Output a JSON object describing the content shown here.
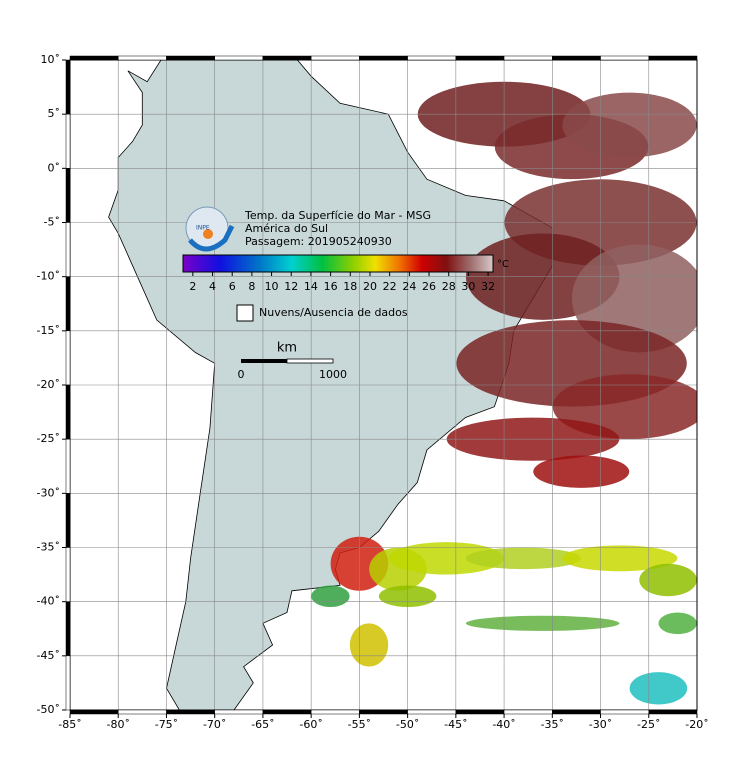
{
  "map": {
    "xlim": [
      -85,
      -20
    ],
    "ylim": [
      -50,
      10
    ],
    "xticks": [
      {
        "value": -85,
        "label": "-85˚"
      },
      {
        "value": -80,
        "label": "-80˚"
      },
      {
        "value": -75,
        "label": "-75˚"
      },
      {
        "value": -70,
        "label": "-70˚"
      },
      {
        "value": -65,
        "label": "-65˚"
      },
      {
        "value": -60,
        "label": "-60˚"
      },
      {
        "value": -55,
        "label": "-55˚"
      },
      {
        "value": -50,
        "label": "-50˚"
      },
      {
        "value": -45,
        "label": "-45˚"
      },
      {
        "value": -40,
        "label": "-40˚"
      },
      {
        "value": -35,
        "label": "-35˚"
      },
      {
        "value": -30,
        "label": "-30˚"
      },
      {
        "value": -25,
        "label": "-25˚"
      },
      {
        "value": -20,
        "label": "-20˚"
      }
    ],
    "yticks": [
      {
        "value": 10,
        "label": "10˚"
      },
      {
        "value": 5,
        "label": "5˚"
      },
      {
        "value": 0,
        "label": "0˚"
      },
      {
        "value": -5,
        "label": "-5˚"
      },
      {
        "value": -10,
        "label": "-10˚"
      },
      {
        "value": -15,
        "label": "-15˚"
      },
      {
        "value": -20,
        "label": "-20˚"
      },
      {
        "value": -25,
        "label": "-25˚"
      },
      {
        "value": -30,
        "label": "-30˚"
      },
      {
        "value": -35,
        "label": "-35˚"
      },
      {
        "value": -40,
        "label": "-40˚"
      },
      {
        "value": -45,
        "label": "-45˚"
      },
      {
        "value": -50,
        "label": "-50˚"
      }
    ],
    "grid": true
  },
  "header": {
    "logo": "INPE",
    "title": "Temp. da Superfície do Mar - MSG",
    "region": "América do Sul",
    "pass": "Passagem: 201905240930"
  },
  "colorbar": {
    "range": [
      1,
      32.5
    ],
    "ticks": [
      2,
      4,
      6,
      8,
      10,
      12,
      14,
      16,
      18,
      20,
      22,
      24,
      26,
      28,
      30,
      32
    ],
    "unit": "°C"
  },
  "legend": {
    "label": "Nuvens/Ausencia de dados"
  },
  "scale_bar": {
    "unit": "km",
    "start": "0",
    "end": "1000"
  }
}
